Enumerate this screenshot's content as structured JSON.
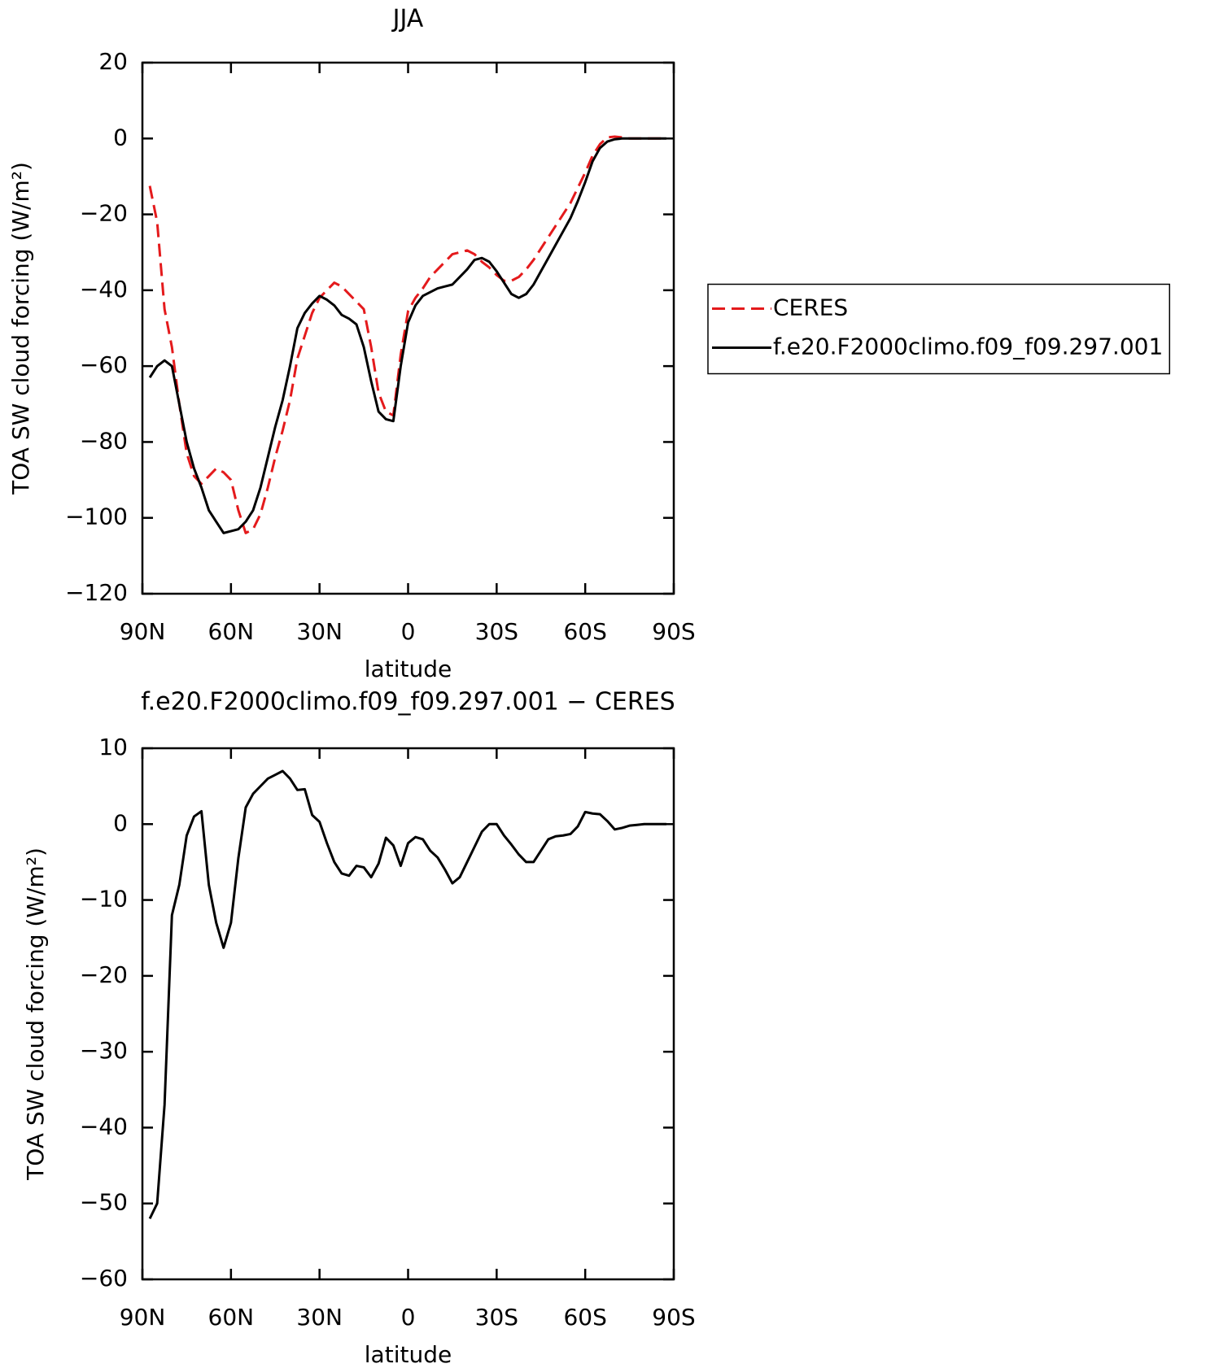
{
  "chart_data": [
    {
      "type": "line",
      "title": "JJA",
      "x_label": "latitude",
      "y_label": "TOA SW cloud forcing (W/m²)",
      "x": [
        87.5,
        85,
        82.5,
        80,
        77.5,
        75,
        72.5,
        70,
        67.5,
        65,
        62.5,
        60,
        57.5,
        55,
        52.5,
        50,
        47.5,
        45,
        42.5,
        40,
        37.5,
        35,
        32.5,
        30,
        27.5,
        25,
        22.5,
        20,
        17.5,
        15,
        12.5,
        10,
        7.5,
        5,
        2.5,
        0,
        -2.5,
        -5,
        -7.5,
        -10,
        -12.5,
        -15,
        -17.5,
        -20,
        -22.5,
        -25,
        -27.5,
        -30,
        -32.5,
        -35,
        -37.5,
        -40,
        -42.5,
        -45,
        -47.5,
        -50,
        -52.5,
        -55,
        -57.5,
        -60,
        -62.5,
        -65,
        -67.5,
        -70,
        -72.5,
        -75,
        -77.5,
        -80,
        -82.5,
        -85,
        -87.5
      ],
      "series": [
        {
          "name": "CERES",
          "color": "#e41a1c",
          "line_style": "dashed",
          "values": [
            -12.5,
            -22,
            -45,
            -55,
            -70,
            -83,
            -89,
            -91,
            -89,
            -87,
            -88,
            -90,
            -98,
            -104,
            -103,
            -99,
            -92,
            -84,
            -77,
            -69,
            -58,
            -52,
            -46,
            -42,
            -40,
            -38,
            -39,
            -41,
            -43,
            -45,
            -55,
            -67,
            -72,
            -73,
            -57,
            -45.5,
            -42,
            -39.5,
            -36.5,
            -34.5,
            -32.5,
            -30.5,
            -30,
            -29.5,
            -30.5,
            -32.5,
            -34,
            -36,
            -37.5,
            -37.5,
            -36.5,
            -34.5,
            -32,
            -29,
            -26,
            -23,
            -20,
            -17,
            -13,
            -9,
            -4.5,
            -1.5,
            0.3,
            0.5,
            0.3,
            0,
            0,
            0,
            0,
            0,
            0
          ]
        },
        {
          "name": "f.e20.F2000climo.f09_f09.297.001",
          "color": "#000000",
          "line_style": "solid",
          "values": [
            -63,
            -60,
            -58.5,
            -60,
            -70,
            -80,
            -87,
            -92,
            -98,
            -101,
            -104,
            -103.5,
            -103,
            -101,
            -98,
            -92,
            -84,
            -76,
            -69,
            -60,
            -50,
            -46,
            -43.5,
            -41.5,
            -42.5,
            -44,
            -46.5,
            -47.5,
            -49,
            -55,
            -64,
            -72,
            -74,
            -74.5,
            -60,
            -48.5,
            -44,
            -41.5,
            -40.5,
            -39.5,
            -39,
            -38.5,
            -36.5,
            -34.5,
            -32,
            -31.5,
            -32.5,
            -35,
            -38,
            -41,
            -42,
            -41,
            -38.5,
            -35,
            -31.5,
            -28,
            -24.5,
            -21,
            -16.5,
            -11.5,
            -6,
            -2.5,
            -0.8,
            -0.2,
            0,
            0,
            0,
            0,
            0,
            0,
            0
          ]
        }
      ],
      "xlim": [
        90,
        -90
      ],
      "xticks": [
        {
          "value": 90,
          "label": "90N"
        },
        {
          "value": 60,
          "label": "60N"
        },
        {
          "value": 30,
          "label": "30N"
        },
        0,
        {
          "value": -30,
          "label": "30S"
        },
        {
          "value": -60,
          "label": "60S"
        },
        {
          "value": -90,
          "label": "90S"
        }
      ],
      "ylim": [
        -120,
        20
      ],
      "yticks": [
        20,
        0,
        {
          "value": -20,
          "label": "−20"
        },
        {
          "value": -40,
          "label": "−40"
        },
        {
          "value": -60,
          "label": "−60"
        },
        {
          "value": -80,
          "label": "−80"
        },
        {
          "value": -100,
          "label": "−100"
        },
        {
          "value": -120,
          "label": "−120"
        }
      ],
      "legend": "right"
    },
    {
      "type": "line",
      "title": "f.e20.F2000climo.f09_f09.297.001 − CERES",
      "x_label": "latitude",
      "y_label": "TOA SW cloud forcing (W/m²)",
      "x": [
        87.5,
        85,
        82.5,
        80,
        77.5,
        75,
        72.5,
        70,
        67.5,
        65,
        62.5,
        60,
        57.5,
        55,
        52.5,
        50,
        47.5,
        45,
        42.5,
        40,
        37.5,
        35,
        32.5,
        30,
        27.5,
        25,
        22.5,
        20,
        17.5,
        15,
        12.5,
        10,
        7.5,
        5,
        2.5,
        0,
        -2.5,
        -5,
        -7.5,
        -10,
        -12.5,
        -15,
        -17.5,
        -20,
        -22.5,
        -25,
        -27.5,
        -30,
        -32.5,
        -35,
        -37.5,
        -40,
        -42.5,
        -45,
        -47.5,
        -50,
        -52.5,
        -55,
        -57.5,
        -60,
        -62.5,
        -65,
        -67.5,
        -70,
        -72.5,
        -75,
        -77.5,
        -80,
        -82.5,
        -85,
        -87.5
      ],
      "values": [
        -52,
        -50,
        -37,
        -12,
        -8,
        -1.5,
        1,
        1.7,
        -8,
        -13,
        -16.3,
        -13,
        -4.5,
        2.2,
        4,
        5,
        6,
        6.5,
        7,
        6,
        4.5,
        4.6,
        1.2,
        0.3,
        -2.5,
        -5,
        -6.5,
        -6.8,
        -5.5,
        -5.7,
        -7,
        -5.2,
        -1.8,
        -2.8,
        -5.5,
        -2.5,
        -1.7,
        -2,
        -3.5,
        -4.4,
        -6,
        -7.8,
        -7,
        -5,
        -3,
        -1,
        0,
        0,
        -1.5,
        -2.7,
        -4,
        -5,
        -5,
        -3.5,
        -2,
        -1.6,
        -1.5,
        -1.3,
        -0.3,
        1.6,
        1.4,
        1.3,
        0.4,
        -0.7,
        -0.5,
        -0.2,
        -0.1,
        0,
        0,
        0,
        0
      ],
      "color": "#000000",
      "xlim": [
        90,
        -90
      ],
      "xticks": [
        {
          "value": 90,
          "label": "90N"
        },
        {
          "value": 60,
          "label": "60N"
        },
        {
          "value": 30,
          "label": "30N"
        },
        0,
        {
          "value": -30,
          "label": "30S"
        },
        {
          "value": -60,
          "label": "60S"
        },
        {
          "value": -90,
          "label": "90S"
        }
      ],
      "ylim": [
        -60,
        10
      ],
      "yticks": [
        10,
        0,
        {
          "value": -10,
          "label": "−10"
        },
        {
          "value": -20,
          "label": "−20"
        },
        {
          "value": -30,
          "label": "−30"
        },
        {
          "value": -40,
          "label": "−40"
        },
        {
          "value": -50,
          "label": "−50"
        },
        {
          "value": -60,
          "label": "−60"
        }
      ]
    }
  ]
}
